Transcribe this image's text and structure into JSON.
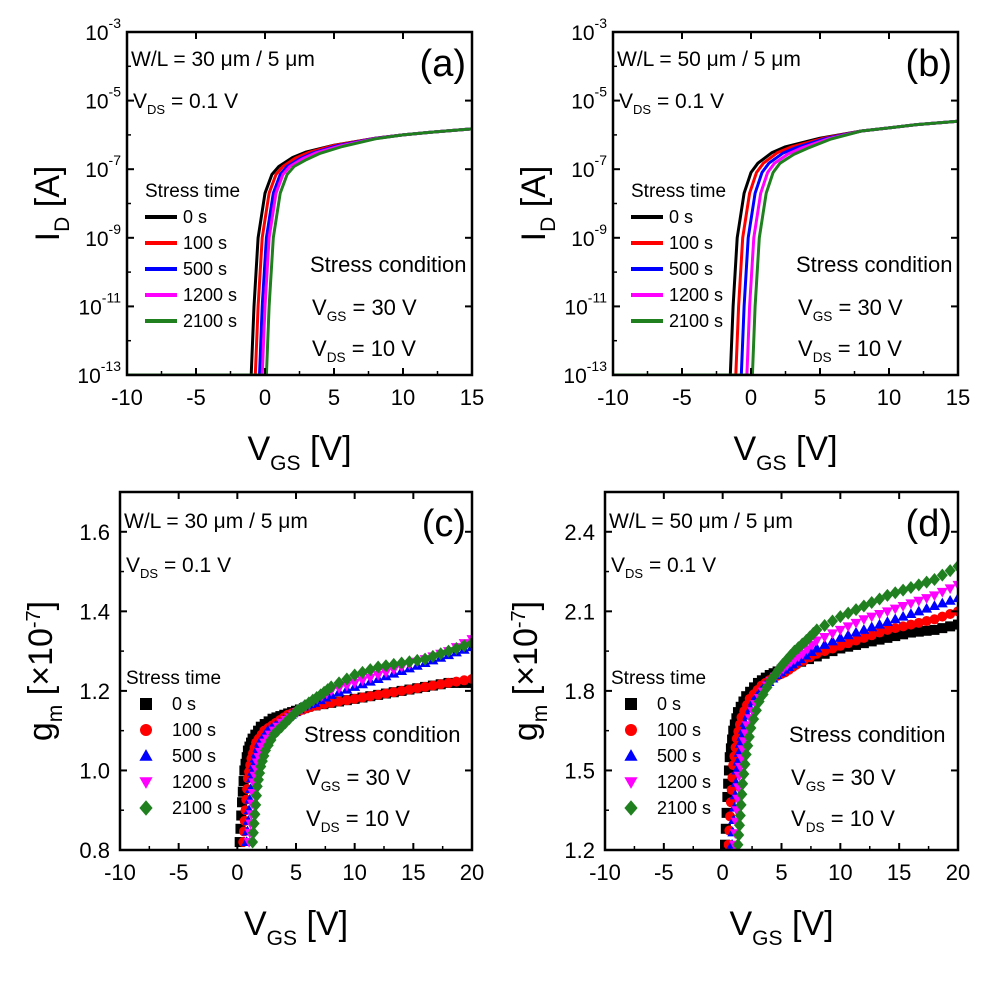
{
  "series_colors": {
    "0 s": "#000000",
    "100 s": "#ff0000",
    "500 s": "#0000ff",
    "1200 s": "#ff00ff",
    "2100 s": "#208020"
  },
  "chart_data": [
    {
      "panel": "(a)",
      "type": "line",
      "xlabel_main": "V",
      "xlabel_sub": "GS",
      "xlabel_unit": " [V]",
      "ylabel_main": "I",
      "ylabel_sub": "D",
      "ylabel_unit": " [A]",
      "xlim": [
        -10,
        15
      ],
      "ylog": true,
      "ylim": [
        1e-13,
        0.001
      ],
      "xticks": [
        "-10",
        "-5",
        "0",
        "5",
        "10",
        "15"
      ],
      "yticks": [
        {
          "base": "10",
          "exp": "-13"
        },
        {
          "base": "10",
          "exp": "-11"
        },
        {
          "base": "10",
          "exp": "-9"
        },
        {
          "base": "10",
          "exp": "-7"
        },
        {
          "base": "10",
          "exp": "-5"
        },
        {
          "base": "10",
          "exp": "-3"
        }
      ],
      "device": "W/L = 30 μm / 5 μm",
      "vds": {
        "main": "V",
        "sub": "DS",
        "rest": " = 0.1 V"
      },
      "legend_title": "Stress time",
      "stress_title": "Stress condition",
      "stress_vgs": {
        "main": "V",
        "sub": "GS",
        "rest": " = 30 V"
      },
      "stress_vds": {
        "main": "V",
        "sub": "DS",
        "rest": " = 10 V"
      },
      "series": [
        {
          "name": "0 s",
          "x": [
            -10,
            -1.0,
            -0.8,
            -0.5,
            0,
            0.5,
            1,
            2,
            3,
            5,
            8,
            10,
            12,
            15
          ],
          "y": [
            1e-13,
            1e-13,
            1e-11,
            1e-09,
            2e-08,
            7e-08,
            1.2e-07,
            2.2e-07,
            3.2e-07,
            5e-07,
            8e-07,
            1e-06,
            1.2e-06,
            1.5e-06
          ]
        },
        {
          "name": "100 s",
          "x": [
            -10,
            -0.7,
            -0.5,
            -0.2,
            0.3,
            0.8,
            1.3,
            2.2,
            3.2,
            5,
            8,
            10,
            12,
            15
          ],
          "y": [
            1e-13,
            1e-13,
            1e-11,
            1e-09,
            2e-08,
            7e-08,
            1.2e-07,
            2.1e-07,
            3.1e-07,
            4.9e-07,
            8e-07,
            1e-06,
            1.2e-06,
            1.5e-06
          ]
        },
        {
          "name": "500 s",
          "x": [
            -10,
            -0.4,
            -0.2,
            0.1,
            0.6,
            1.1,
            1.6,
            2.5,
            3.5,
            5.2,
            8,
            10,
            12,
            15
          ],
          "y": [
            1e-13,
            1e-13,
            1e-11,
            1e-09,
            2e-08,
            7e-08,
            1.2e-07,
            2e-07,
            3e-07,
            4.8e-07,
            7.9e-07,
            1e-06,
            1.2e-06,
            1.5e-06
          ]
        },
        {
          "name": "1200 s",
          "x": [
            -10,
            -0.2,
            0.0,
            0.3,
            0.8,
            1.3,
            1.8,
            2.7,
            3.7,
            5.4,
            8,
            10,
            12,
            15
          ],
          "y": [
            1e-13,
            1e-13,
            1e-11,
            1e-09,
            2e-08,
            7e-08,
            1.2e-07,
            2e-07,
            3e-07,
            4.7e-07,
            7.8e-07,
            1e-06,
            1.2e-06,
            1.5e-06
          ]
        },
        {
          "name": "2100 s",
          "x": [
            -10,
            0.1,
            0.3,
            0.6,
            1.1,
            1.6,
            2.1,
            3.0,
            4.0,
            5.6,
            8,
            10,
            12,
            15
          ],
          "y": [
            1e-13,
            1e-13,
            1e-11,
            1e-09,
            2e-08,
            7e-08,
            1.2e-07,
            1.9e-07,
            2.9e-07,
            4.6e-07,
            7.7e-07,
            1e-06,
            1.2e-06,
            1.5e-06
          ]
        }
      ]
    },
    {
      "panel": "(b)",
      "type": "line",
      "xlabel_main": "V",
      "xlabel_sub": "GS",
      "xlabel_unit": " [V]",
      "ylabel_main": "I",
      "ylabel_sub": "D",
      "ylabel_unit": " [A]",
      "xlim": [
        -10,
        15
      ],
      "ylog": true,
      "ylim": [
        1e-13,
        0.001
      ],
      "xticks": [
        "-10",
        "-5",
        "0",
        "5",
        "10",
        "15"
      ],
      "yticks": [
        {
          "base": "10",
          "exp": "-13"
        },
        {
          "base": "10",
          "exp": "-11"
        },
        {
          "base": "10",
          "exp": "-9"
        },
        {
          "base": "10",
          "exp": "-7"
        },
        {
          "base": "10",
          "exp": "-5"
        },
        {
          "base": "10",
          "exp": "-3"
        }
      ],
      "device": "W/L = 50 μm / 5 μm",
      "vds": {
        "main": "V",
        "sub": "DS",
        "rest": " = 0.1 V"
      },
      "legend_title": "Stress time",
      "stress_title": "Stress condition",
      "stress_vgs": {
        "main": "V",
        "sub": "GS",
        "rest": " = 30 V"
      },
      "stress_vds": {
        "main": "V",
        "sub": "DS",
        "rest": " = 10 V"
      },
      "series": [
        {
          "name": "0 s",
          "x": [
            -10,
            -1.5,
            -1.3,
            -1.0,
            -0.5,
            0,
            0.5,
            1.5,
            2.5,
            5,
            8,
            10,
            12,
            15
          ],
          "y": [
            1e-13,
            1e-13,
            1e-11,
            1e-09,
            2e-08,
            8e-08,
            1.5e-07,
            3e-07,
            4.5e-07,
            8e-07,
            1.3e-06,
            1.6e-06,
            2e-06,
            2.5e-06
          ]
        },
        {
          "name": "100 s",
          "x": [
            -10,
            -1.1,
            -0.9,
            -0.6,
            -0.1,
            0.4,
            0.9,
            1.9,
            2.9,
            5.2,
            8,
            10,
            12,
            15
          ],
          "y": [
            1e-13,
            1e-13,
            1e-11,
            1e-09,
            2e-08,
            8e-08,
            1.5e-07,
            3e-07,
            4.4e-07,
            7.9e-07,
            1.3e-06,
            1.6e-06,
            2e-06,
            2.5e-06
          ]
        },
        {
          "name": "500 s",
          "x": [
            -10,
            -0.7,
            -0.5,
            -0.2,
            0.3,
            0.8,
            1.3,
            2.3,
            3.3,
            5.4,
            8,
            10,
            12,
            15
          ],
          "y": [
            1e-13,
            1e-13,
            1e-11,
            1e-09,
            2e-08,
            8e-08,
            1.5e-07,
            2.9e-07,
            4.3e-07,
            7.8e-07,
            1.3e-06,
            1.6e-06,
            2e-06,
            2.5e-06
          ]
        },
        {
          "name": "1200 s",
          "x": [
            -10,
            -0.3,
            -0.1,
            0.2,
            0.7,
            1.2,
            1.7,
            2.7,
            3.7,
            5.6,
            8,
            10,
            12,
            15
          ],
          "y": [
            1e-13,
            1e-13,
            1e-11,
            1e-09,
            2e-08,
            8e-08,
            1.5e-07,
            2.8e-07,
            4.2e-07,
            7.7e-07,
            1.3e-06,
            1.6e-06,
            2e-06,
            2.5e-06
          ]
        },
        {
          "name": "2100 s",
          "x": [
            -10,
            0.1,
            0.3,
            0.6,
            1.1,
            1.6,
            2.1,
            3.1,
            4.1,
            5.8,
            8,
            10,
            12,
            15
          ],
          "y": [
            1e-13,
            1e-13,
            1e-11,
            1e-09,
            2e-08,
            8e-08,
            1.5e-07,
            2.7e-07,
            4.1e-07,
            7.6e-07,
            1.3e-06,
            1.6e-06,
            2e-06,
            2.5e-06
          ]
        }
      ]
    },
    {
      "panel": "(c)",
      "type": "scatter",
      "xlabel_main": "V",
      "xlabel_sub": "GS",
      "xlabel_unit": " [V]",
      "ylabel_main": "g",
      "ylabel_sub": "m",
      "ylabel_unit": " [×10",
      "ylabel_exp": "-7",
      "ylabel_close": "]",
      "xlim": [
        -10,
        20
      ],
      "ylog": false,
      "ylim": [
        0.8,
        1.7
      ],
      "xticks": [
        "-10",
        "-5",
        "0",
        "5",
        "10",
        "15",
        "20"
      ],
      "yticks": [
        "0.8",
        "1.0",
        "1.2",
        "1.4",
        "1.6"
      ],
      "device": "W/L = 30 μm / 5 μm",
      "vds": {
        "main": "V",
        "sub": "DS",
        "rest": " = 0.1 V"
      },
      "legend_title": "Stress time",
      "stress_title": "Stress condition",
      "stress_vgs": {
        "main": "V",
        "sub": "GS",
        "rest": " = 30 V"
      },
      "stress_vds": {
        "main": "V",
        "sub": "DS",
        "rest": " = 10 V"
      },
      "series": [
        {
          "name": "0 s",
          "marker": "square",
          "x": [
            0.2,
            0.4,
            0.6,
            0.9,
            1.3,
            2,
            3,
            4,
            5,
            6,
            8,
            10,
            12,
            14,
            16,
            18,
            20
          ],
          "y": [
            0.82,
            0.92,
            1.0,
            1.05,
            1.08,
            1.11,
            1.13,
            1.14,
            1.15,
            1.16,
            1.17,
            1.18,
            1.19,
            1.2,
            1.21,
            1.22,
            1.22
          ]
        },
        {
          "name": "100 s",
          "marker": "circle",
          "x": [
            0.5,
            0.7,
            0.9,
            1.2,
            1.6,
            2.3,
            3.3,
            4.3,
            5.3,
            6.3,
            8,
            10,
            12,
            14,
            16,
            18,
            20
          ],
          "y": [
            0.82,
            0.9,
            0.98,
            1.03,
            1.07,
            1.1,
            1.12,
            1.14,
            1.15,
            1.16,
            1.17,
            1.18,
            1.19,
            1.2,
            1.21,
            1.22,
            1.23
          ]
        },
        {
          "name": "500 s",
          "marker": "triangle",
          "x": [
            0.8,
            1.0,
            1.2,
            1.5,
            1.9,
            2.6,
            3.6,
            4.6,
            5.6,
            6.6,
            8,
            10,
            12,
            14,
            16,
            18,
            20
          ],
          "y": [
            0.82,
            0.9,
            0.98,
            1.03,
            1.07,
            1.1,
            1.12,
            1.14,
            1.16,
            1.17,
            1.19,
            1.21,
            1.23,
            1.25,
            1.27,
            1.29,
            1.31
          ]
        },
        {
          "name": "1200 s",
          "marker": "triangle-down",
          "x": [
            1.0,
            1.2,
            1.4,
            1.7,
            2.1,
            2.8,
            3.8,
            4.8,
            5.8,
            6.8,
            8,
            10,
            12,
            14,
            16,
            18,
            20
          ],
          "y": [
            0.82,
            0.89,
            0.97,
            1.02,
            1.06,
            1.09,
            1.12,
            1.14,
            1.16,
            1.18,
            1.2,
            1.22,
            1.24,
            1.26,
            1.28,
            1.3,
            1.33
          ]
        },
        {
          "name": "2100 s",
          "marker": "diamond",
          "x": [
            1.3,
            1.5,
            1.7,
            2.0,
            2.4,
            3.1,
            4.1,
            5.1,
            6.1,
            7.1,
            8,
            10,
            12,
            14,
            16,
            18,
            20
          ],
          "y": [
            0.82,
            0.89,
            0.96,
            1.01,
            1.05,
            1.09,
            1.12,
            1.15,
            1.17,
            1.19,
            1.21,
            1.24,
            1.26,
            1.27,
            1.28,
            1.3,
            1.32
          ]
        }
      ]
    },
    {
      "panel": "(d)",
      "type": "scatter",
      "xlabel_main": "V",
      "xlabel_sub": "GS",
      "xlabel_unit": " [V]",
      "ylabel_main": "g",
      "ylabel_sub": "m",
      "ylabel_unit": " [×10",
      "ylabel_exp": "-7",
      "ylabel_close": "]",
      "xlim": [
        -10,
        20
      ],
      "ylog": false,
      "ylim": [
        1.2,
        2.55
      ],
      "xticks": [
        "-10",
        "-5",
        "0",
        "5",
        "10",
        "15",
        "20"
      ],
      "yticks": [
        "1.2",
        "1.5",
        "1.8",
        "2.1",
        "2.4"
      ],
      "device": "W/L = 50 μm / 5 μm",
      "vds": {
        "main": "V",
        "sub": "DS",
        "rest": " = 0.1 V"
      },
      "legend_title": "Stress time",
      "stress_title": "Stress condition",
      "stress_vgs": {
        "main": "V",
        "sub": "GS",
        "rest": " = 30 V"
      },
      "stress_vds": {
        "main": "V",
        "sub": "DS",
        "rest": " = 10 V"
      },
      "series": [
        {
          "name": "0 s",
          "marker": "square",
          "x": [
            0.2,
            0.4,
            0.6,
            0.9,
            1.3,
            2,
            3,
            4,
            5,
            6,
            8,
            10,
            12,
            14,
            16,
            18,
            20
          ],
          "y": [
            1.22,
            1.4,
            1.55,
            1.65,
            1.72,
            1.78,
            1.83,
            1.86,
            1.88,
            1.9,
            1.93,
            1.96,
            1.98,
            2.0,
            2.02,
            2.03,
            2.05
          ]
        },
        {
          "name": "100 s",
          "marker": "circle",
          "x": [
            0.5,
            0.7,
            0.9,
            1.2,
            1.6,
            2.3,
            3.3,
            4.3,
            5.3,
            6.3,
            8,
            10,
            12,
            14,
            16,
            18,
            20
          ],
          "y": [
            1.22,
            1.38,
            1.52,
            1.62,
            1.7,
            1.77,
            1.82,
            1.85,
            1.87,
            1.9,
            1.94,
            1.97,
            2.0,
            2.03,
            2.05,
            2.07,
            2.1
          ]
        },
        {
          "name": "500 s",
          "marker": "triangle",
          "x": [
            0.8,
            1.0,
            1.2,
            1.5,
            1.9,
            2.6,
            3.6,
            4.6,
            5.6,
            6.6,
            8,
            10,
            12,
            14,
            16,
            18,
            20
          ],
          "y": [
            1.22,
            1.36,
            1.5,
            1.6,
            1.68,
            1.76,
            1.82,
            1.86,
            1.89,
            1.92,
            1.96,
            2.0,
            2.03,
            2.06,
            2.09,
            2.12,
            2.15
          ]
        },
        {
          "name": "1200 s",
          "marker": "triangle-down",
          "x": [
            1.0,
            1.2,
            1.4,
            1.7,
            2.1,
            2.8,
            3.8,
            4.8,
            5.8,
            6.8,
            8,
            10,
            12,
            14,
            16,
            18,
            20
          ],
          "y": [
            1.22,
            1.35,
            1.48,
            1.58,
            1.67,
            1.75,
            1.82,
            1.87,
            1.91,
            1.94,
            1.99,
            2.03,
            2.07,
            2.1,
            2.13,
            2.16,
            2.2
          ]
        },
        {
          "name": "2100 s",
          "marker": "diamond",
          "x": [
            1.3,
            1.5,
            1.7,
            2.0,
            2.4,
            3.1,
            4.1,
            5.1,
            6.1,
            7.1,
            8,
            10,
            12,
            14,
            16,
            18,
            20
          ],
          "y": [
            1.22,
            1.33,
            1.45,
            1.56,
            1.66,
            1.76,
            1.84,
            1.9,
            1.95,
            1.99,
            2.03,
            2.08,
            2.12,
            2.16,
            2.19,
            2.22,
            2.27
          ]
        }
      ]
    }
  ]
}
